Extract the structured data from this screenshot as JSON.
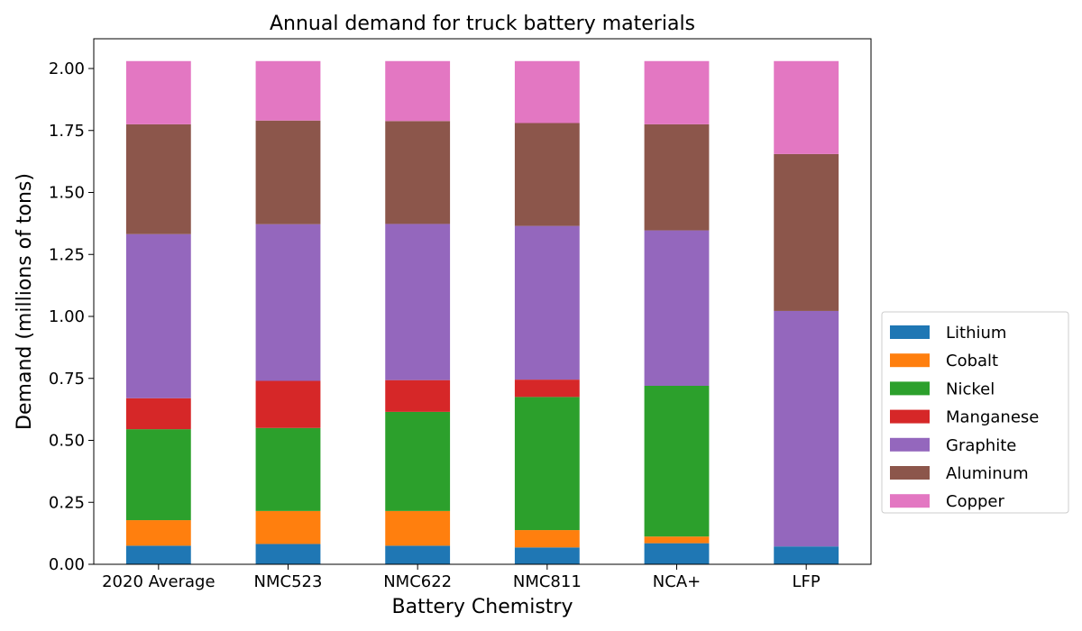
{
  "chart_data": {
    "type": "bar",
    "stacked": true,
    "title": "Annual demand for truck battery materials",
    "xlabel": "Battery Chemistry",
    "ylabel": "Demand (millions of tons)",
    "ylim": [
      0,
      2.12
    ],
    "yticks": [
      "0.00",
      "0.25",
      "0.50",
      "0.75",
      "1.00",
      "1.25",
      "1.50",
      "1.75",
      "2.00"
    ],
    "ytick_values": [
      0,
      0.25,
      0.5,
      0.75,
      1.0,
      1.25,
      1.5,
      1.75,
      2.0
    ],
    "grid": false,
    "legend_position": "right",
    "categories": [
      "2020 Average",
      "NMC523",
      "NMC622",
      "NMC811",
      "NCA+",
      "LFP"
    ],
    "series": [
      {
        "name": "Lithium",
        "color": "#1f77b4",
        "values": [
          0.075,
          0.082,
          0.075,
          0.068,
          0.085,
          0.072
        ]
      },
      {
        "name": "Cobalt",
        "color": "#ff7f0e",
        "values": [
          0.103,
          0.133,
          0.14,
          0.07,
          0.027,
          0.0
        ]
      },
      {
        "name": "Nickel",
        "color": "#2ca02c",
        "values": [
          0.367,
          0.335,
          0.4,
          0.537,
          0.608,
          0.0
        ]
      },
      {
        "name": "Manganese",
        "color": "#d62728",
        "values": [
          0.125,
          0.19,
          0.128,
          0.07,
          0.0,
          0.0
        ]
      },
      {
        "name": "Graphite",
        "color": "#9467bd",
        "values": [
          0.662,
          0.632,
          0.63,
          0.62,
          0.627,
          0.95
        ]
      },
      {
        "name": "Aluminum",
        "color": "#8c564b",
        "values": [
          0.443,
          0.418,
          0.415,
          0.415,
          0.428,
          0.633
        ]
      },
      {
        "name": "Copper",
        "color": "#e377c2",
        "values": [
          0.255,
          0.24,
          0.242,
          0.25,
          0.255,
          0.375
        ]
      }
    ]
  }
}
